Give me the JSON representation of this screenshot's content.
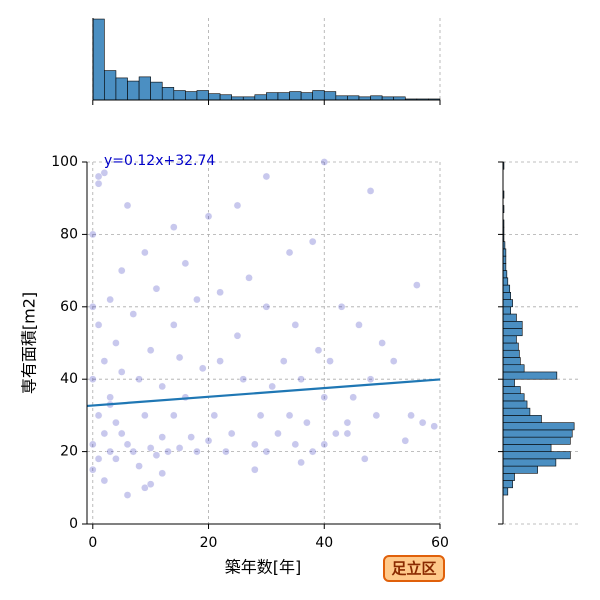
{
  "chart_data": [
    {
      "type": "scatter",
      "x": [
        0,
        0,
        0,
        0,
        0,
        1,
        1,
        1,
        1,
        2,
        2,
        2,
        3,
        3,
        3,
        4,
        4,
        5,
        5,
        5,
        6,
        6,
        7,
        7,
        8,
        8,
        9,
        9,
        10,
        10,
        11,
        11,
        12,
        12,
        13,
        14,
        14,
        15,
        15,
        16,
        17,
        18,
        18,
        19,
        20,
        20,
        21,
        22,
        23,
        24,
        25,
        26,
        27,
        28,
        29,
        30,
        30,
        31,
        32,
        33,
        34,
        35,
        35,
        36,
        37,
        38,
        38,
        39,
        40,
        40,
        41,
        42,
        43,
        44,
        45,
        46,
        47,
        48,
        49,
        50,
        52,
        54,
        55,
        57,
        59,
        2,
        6,
        10,
        16,
        22,
        28,
        34,
        40,
        48,
        56,
        1,
        4,
        9,
        14,
        30,
        36,
        44,
        3,
        12,
        25
      ],
      "y": [
        15,
        22,
        40,
        60,
        80,
        18,
        30,
        55,
        94,
        25,
        45,
        97,
        20,
        35,
        62,
        18,
        50,
        25,
        42,
        70,
        22,
        88,
        20,
        58,
        16,
        40,
        10,
        30,
        21,
        48,
        19,
        65,
        24,
        38,
        20,
        55,
        30,
        21,
        46,
        35,
        24,
        20,
        62,
        43,
        23,
        85,
        30,
        45,
        20,
        25,
        52,
        40,
        68,
        22,
        30,
        20,
        60,
        38,
        25,
        45,
        30,
        22,
        55,
        40,
        28,
        20,
        78,
        48,
        22,
        35,
        45,
        25,
        60,
        28,
        35,
        55,
        18,
        40,
        30,
        50,
        45,
        23,
        30,
        28,
        27,
        12,
        8,
        11,
        72,
        64,
        15,
        75,
        100,
        92,
        66,
        96,
        28,
        75,
        82,
        96,
        17,
        25,
        33,
        14,
        88
      ],
      "color": "#2222b8",
      "xlim": [
        -1,
        60
      ],
      "ylim": [
        0,
        100
      ],
      "xticks": [
        0,
        20,
        40,
        60
      ],
      "yticks": [
        0,
        20,
        40,
        60,
        80,
        100
      ],
      "xlabel": "築年数[年]",
      "ylabel": "専有面積[m2]",
      "annotation": "y=0.12x+32.74",
      "trend": {
        "x": [
          -1,
          60
        ],
        "y": [
          32.62,
          39.94
        ],
        "color": "#1f77b4"
      },
      "grid": true
    },
    {
      "type": "histogram",
      "bins": [
        0,
        2,
        4,
        6,
        8,
        10,
        12,
        14,
        16,
        18,
        20,
        22,
        24,
        26,
        28,
        30,
        32,
        34,
        36,
        38,
        40,
        42,
        44,
        46,
        48,
        50,
        52,
        54,
        56,
        58,
        60
      ],
      "values": [
        770,
        280,
        210,
        180,
        220,
        170,
        120,
        90,
        80,
        90,
        60,
        50,
        30,
        30,
        50,
        70,
        70,
        80,
        70,
        90,
        80,
        40,
        40,
        30,
        40,
        30,
        30,
        10,
        10,
        10
      ],
      "color": "#4b8fc2",
      "xlim": [
        -1,
        60
      ],
      "xticks": [
        0,
        20,
        40,
        60
      ],
      "ylim": [
        0,
        780
      ],
      "grid": true
    },
    {
      "type": "histogram",
      "orientation": "horizontal",
      "bins": [
        8,
        10,
        12,
        14,
        16,
        18,
        20,
        22,
        24,
        26,
        28,
        30,
        32,
        34,
        36,
        38,
        40,
        42,
        44,
        46,
        48,
        50,
        52,
        54,
        56,
        58,
        60,
        62,
        64,
        66,
        68,
        70,
        72,
        74,
        76,
        78,
        80,
        82,
        84,
        86,
        88,
        90,
        92,
        94,
        96,
        98,
        100
      ],
      "values": [
        50,
        100,
        120,
        360,
        550,
        700,
        500,
        700,
        720,
        740,
        400,
        280,
        250,
        220,
        180,
        120,
        560,
        220,
        180,
        170,
        160,
        140,
        200,
        200,
        140,
        80,
        100,
        80,
        70,
        50,
        40,
        30,
        30,
        30,
        20,
        10,
        10,
        10,
        0,
        10,
        0,
        10,
        0,
        0,
        0,
        10
      ],
      "color": "#4b8fc2",
      "ylim": [
        0,
        100
      ],
      "yticks": [
        0,
        20,
        40,
        60,
        80,
        100
      ],
      "xlim": [
        0,
        780
      ],
      "grid": true
    }
  ],
  "badge": "足立区"
}
